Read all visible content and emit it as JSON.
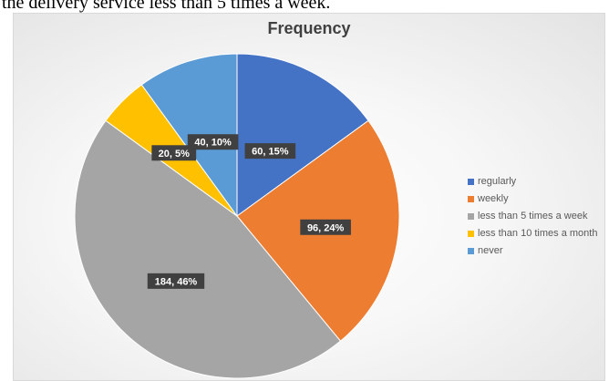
{
  "caption": "the delivery service less than 5 times a week.",
  "chart_data": {
    "type": "pie",
    "title": "Frequency",
    "legend_position": "right",
    "slices": [
      {
        "name": "regularly",
        "value": 60,
        "percent": "15%",
        "label": "60, 15%",
        "color": "#4472C4"
      },
      {
        "name": "weekly",
        "value": 96,
        "percent": "24%",
        "label": "96, 24%",
        "color": "#ED7D31"
      },
      {
        "name": "less than 5 times a week",
        "value": 184,
        "percent": "46%",
        "label": "184, 46%",
        "color": "#A5A5A5"
      },
      {
        "name": "less than 10 times a month",
        "value": 20,
        "percent": "5%",
        "label": "20, 5%",
        "color": "#FFC000"
      },
      {
        "name": "never",
        "value": 40,
        "percent": "10%",
        "label": "40, 10%",
        "color": "#5B9BD5"
      }
    ]
  }
}
